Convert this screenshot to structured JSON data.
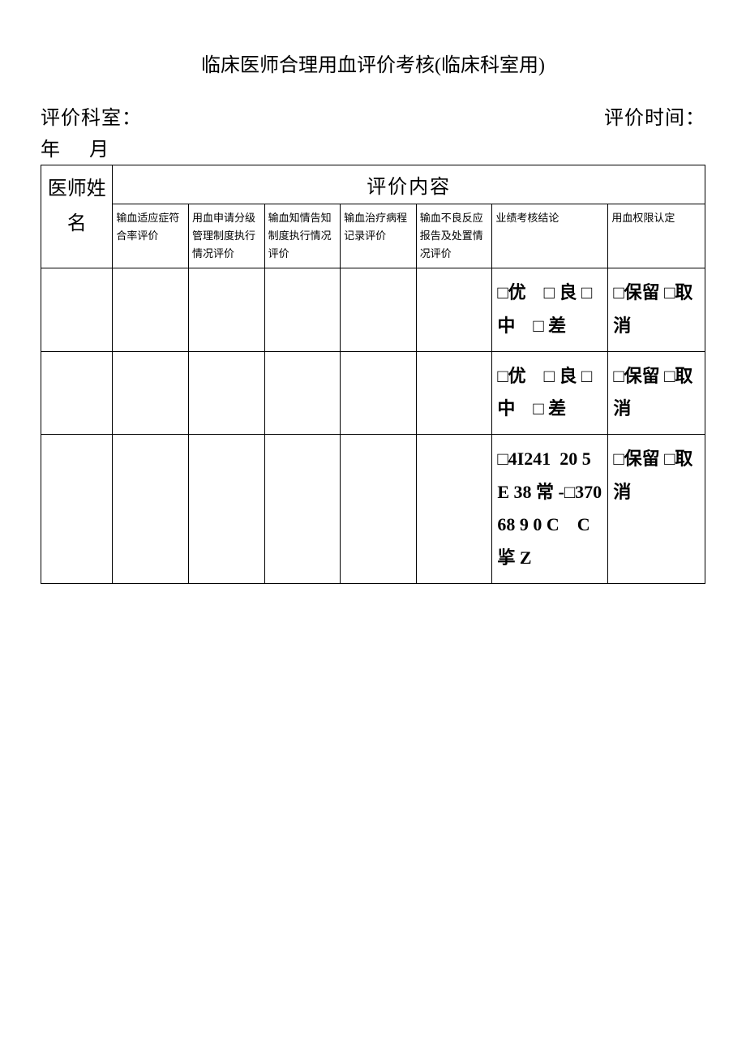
{
  "title": "临床医师合理用血评价考核(临床科室用)",
  "subheader": {
    "left": "评价科室：",
    "right": "评价时间："
  },
  "dateLine": {
    "year": "年",
    "month": "月"
  },
  "table": {
    "nameHeader": "医师姓名",
    "contentHeader": "评价内容",
    "columns": [
      "输血适应症符合率评价",
      "用血申请分级管理制度执行情况评价",
      "输血知情告知制度执行情况评价",
      "输血治疗病程记录评价",
      "输血不良反应报告及处置情况评价",
      "业绩考核结论",
      "用血权限认定"
    ],
    "rows": [
      {
        "result": "□优　□ 良 □中　□ 差",
        "auth": "□保留 □取消"
      },
      {
        "result": "□优　□ 良 □中　□ 差",
        "auth": "□保留 □取消"
      },
      {
        "result": "□4I241  20 5  E 38 常 -□370  68 9 0 C　C 㧛 Z",
        "auth": "□保留 □取消"
      }
    ]
  },
  "style": {
    "background": "#ffffff",
    "border_color": "#000000",
    "title_fontsize": 24,
    "subheader_fontsize": 24,
    "subcol_fontsize": 13,
    "cell_fontsize": 22
  }
}
